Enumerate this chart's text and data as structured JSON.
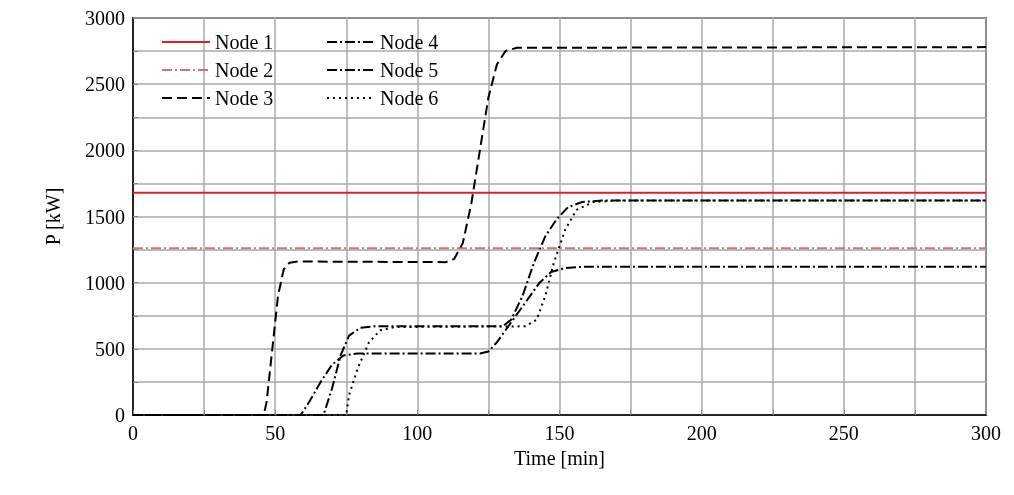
{
  "chart_data": {
    "type": "line",
    "xlabel": "Time [min]",
    "ylabel": "P [kW]",
    "xlim": [
      0,
      300
    ],
    "ylim": [
      0,
      3000
    ],
    "xticks": [
      0,
      {
        "value": 25,
        "label": null
      },
      50,
      {
        "value": 75,
        "label": null
      },
      100,
      {
        "value": 125,
        "label": null
      },
      150,
      {
        "value": 175,
        "label": null
      },
      200,
      {
        "value": 225,
        "label": null
      },
      250,
      {
        "value": 275,
        "label": null
      },
      300
    ],
    "yticks": [
      0,
      {
        "value": 250,
        "label": null
      },
      500,
      {
        "value": 750,
        "label": null
      },
      1000,
      {
        "value": 1250,
        "label": null
      },
      1500,
      {
        "value": 1750,
        "label": null
      },
      2000,
      {
        "value": 2250,
        "label": null
      },
      2500,
      {
        "value": 2750,
        "label": null
      },
      3000
    ],
    "grid": true,
    "legend": "top left",
    "marker": "none",
    "series": [
      {
        "name": "Node 1",
        "color": "#e02020",
        "line_style": "solid",
        "x": [
          0,
          300
        ],
        "values": [
          1680,
          1680
        ]
      },
      {
        "name": "Node 2",
        "color": "#c87878",
        "line_style": "dashdot",
        "x": [
          0,
          300
        ],
        "values": [
          1260,
          1260
        ]
      },
      {
        "name": "Node 3",
        "color": "#000000",
        "line_style": "dashed",
        "x": [
          0,
          46,
          47,
          49,
          51,
          53,
          55,
          58,
          110,
          113,
          116,
          119,
          122,
          125,
          128,
          131,
          135,
          300
        ],
        "values": [
          0,
          0,
          100,
          500,
          900,
          1100,
          1150,
          1160,
          1155,
          1180,
          1300,
          1600,
          2000,
          2400,
          2650,
          2750,
          2775,
          2780
        ]
      },
      {
        "name": "Node 4",
        "color": "#000000",
        "line_style": "dashdot",
        "x": [
          0,
          67,
          70,
          73,
          76,
          80,
          85,
          130,
          133,
          137,
          141,
          145,
          149,
          153,
          158,
          165,
          300
        ],
        "values": [
          0,
          0,
          200,
          450,
          600,
          660,
          670,
          670,
          720,
          900,
          1150,
          1350,
          1480,
          1570,
          1610,
          1620,
          1620
        ]
      },
      {
        "name": "Node 5",
        "color": "#000000",
        "line_style": "dashdot",
        "x": [
          0,
          59,
          62,
          66,
          70,
          74,
          79,
          122,
          125,
          128,
          133,
          138,
          143,
          147,
          152,
          158,
          300
        ],
        "values": [
          0,
          0,
          100,
          250,
          380,
          450,
          465,
          465,
          480,
          550,
          700,
          850,
          1000,
          1080,
          1110,
          1120,
          1120
        ]
      },
      {
        "name": "Node 6",
        "color": "#000000",
        "line_style": "dotted",
        "x": [
          0,
          75,
          76,
          79,
          83,
          87,
          92,
          138,
          142,
          145,
          148,
          152,
          156,
          162,
          170,
          300
        ],
        "values": [
          0,
          0,
          150,
          350,
          550,
          640,
          665,
          670,
          720,
          900,
          1150,
          1400,
          1550,
          1610,
          1620,
          1620
        ]
      }
    ]
  }
}
